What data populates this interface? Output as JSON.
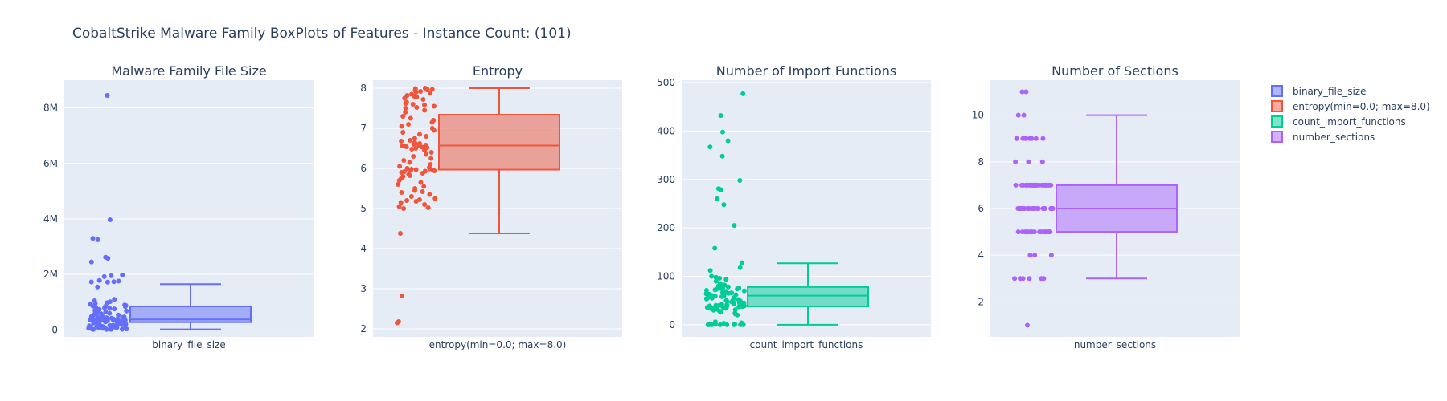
{
  "title": "CobaltStrike Malware Family BoxPlots of Features - Instance Count: (101)",
  "colors": {
    "plot_bg": "#e5ecf6",
    "grid": "#ffffff",
    "text": "#2a3f5f"
  },
  "legend": {
    "placement": "right",
    "items": [
      {
        "label": "binary_file_size",
        "color": "#636efa"
      },
      {
        "label": "entropy(min=0.0; max=8.0)",
        "color": "#ef553b"
      },
      {
        "label": "count_import_functions",
        "color": "#00cc96"
      },
      {
        "label": "number_sections",
        "color": "#ab63fa"
      }
    ]
  },
  "chart_data": [
    {
      "type": "box",
      "title": "Malware Family File Size",
      "category": "binary_file_size",
      "color": "#636efa",
      "ylim": [
        -250000,
        9000000
      ],
      "yticks": [
        0,
        2000000,
        4000000,
        6000000,
        8000000
      ],
      "yticklabels": [
        "0",
        "2M",
        "4M",
        "6M",
        "8M"
      ],
      "box": {
        "min": 20000,
        "q1": 280000,
        "median": 380000,
        "q3": 850000,
        "max": 1650000
      },
      "points": [
        8450000,
        3970000,
        3300000,
        3250000,
        2620000,
        2580000,
        2450000,
        1980000,
        1950000,
        1920000,
        1780000,
        1760000,
        1740000,
        1730000,
        1720000,
        1550000,
        1100000,
        1050000,
        1020000,
        980000,
        950000,
        920000,
        900000,
        880000,
        860000,
        850000,
        840000,
        820000,
        800000,
        780000,
        760000,
        740000,
        700000,
        680000,
        650000,
        620000,
        600000,
        580000,
        560000,
        540000,
        520000,
        500000,
        480000,
        470000,
        460000,
        450000,
        440000,
        430000,
        420000,
        410000,
        400000,
        390000,
        385000,
        380000,
        375000,
        370000,
        365000,
        360000,
        355000,
        350000,
        345000,
        340000,
        335000,
        330000,
        320000,
        310000,
        300000,
        290000,
        280000,
        270000,
        260000,
        250000,
        240000,
        230000,
        220000,
        210000,
        200000,
        190000,
        180000,
        170000,
        160000,
        150000,
        140000,
        130000,
        120000,
        110000,
        100000,
        90000,
        80000,
        70000,
        60000,
        55000,
        50000,
        45000,
        40000,
        35000,
        30000,
        25000,
        22000,
        20000,
        18000
      ]
    },
    {
      "type": "box",
      "title": "Entropy",
      "category": "entropy(min=0.0; max=8.0)",
      "color": "#ef553b",
      "ylim": [
        1.8,
        8.2
      ],
      "yticks": [
        2,
        3,
        4,
        5,
        6,
        7,
        8
      ],
      "yticklabels": [
        "2",
        "3",
        "4",
        "5",
        "6",
        "7",
        "8"
      ],
      "box": {
        "min": 4.38,
        "q1": 5.97,
        "median": 6.57,
        "q3": 7.34,
        "max": 8.0
      },
      "points": [
        8.0,
        7.99,
        7.98,
        7.97,
        7.96,
        7.95,
        7.93,
        7.92,
        7.9,
        7.88,
        7.85,
        7.82,
        7.8,
        7.78,
        7.75,
        7.72,
        7.6,
        7.58,
        7.55,
        7.52,
        7.5,
        7.45,
        7.4,
        7.3,
        7.25,
        7.2,
        7.15,
        7.1,
        7.05,
        7.0,
        6.95,
        6.9,
        6.85,
        6.8,
        6.75,
        6.7,
        6.68,
        6.65,
        6.62,
        6.6,
        6.58,
        6.57,
        6.56,
        6.55,
        6.54,
        6.53,
        6.52,
        6.5,
        6.48,
        6.45,
        6.4,
        6.35,
        6.3,
        6.25,
        6.2,
        6.15,
        6.1,
        6.05,
        6.02,
        6.0,
        5.99,
        5.98,
        5.97,
        5.96,
        5.95,
        5.94,
        5.93,
        5.92,
        5.9,
        5.88,
        5.85,
        5.82,
        5.8,
        5.75,
        5.7,
        5.65,
        5.6,
        5.55,
        5.5,
        5.45,
        5.42,
        5.4,
        5.35,
        5.3,
        5.25,
        5.22,
        5.2,
        5.18,
        5.15,
        5.1,
        5.05,
        5.02,
        5.0,
        4.38,
        2.82,
        2.18,
        2.15,
        6.62,
        6.58,
        7.62,
        7.65
      ]
    },
    {
      "type": "box",
      "title": "Number of Import Functions",
      "category": "count_import_functions",
      "color": "#00cc96",
      "ylim": [
        -25,
        505
      ],
      "yticks": [
        0,
        100,
        200,
        300,
        400,
        500
      ],
      "yticklabels": [
        "0",
        "100",
        "200",
        "300",
        "400",
        "500"
      ],
      "box": {
        "min": 0,
        "q1": 38,
        "median": 60,
        "q3": 78,
        "max": 127
      },
      "points": [
        477,
        432,
        398,
        380,
        367,
        348,
        298,
        281,
        279,
        260,
        248,
        205,
        158,
        128,
        118,
        112,
        100,
        98,
        96,
        94,
        90,
        85,
        82,
        80,
        78,
        77,
        76,
        75,
        74,
        73,
        72,
        71,
        70,
        69,
        68,
        67,
        66,
        65,
        64,
        63,
        62,
        61,
        60,
        60,
        59,
        58,
        57,
        56,
        55,
        54,
        53,
        52,
        51,
        50,
        49,
        48,
        47,
        46,
        45,
        44,
        43,
        42,
        41,
        40,
        40,
        39,
        39,
        38,
        38,
        38,
        37,
        37,
        36,
        36,
        35,
        35,
        34,
        34,
        33,
        32,
        31,
        30,
        28,
        26,
        24,
        22,
        20,
        6,
        4,
        3,
        2,
        1,
        1,
        0,
        0,
        0,
        0,
        0,
        0,
        0,
        0
      ]
    },
    {
      "type": "box",
      "title": "Number of Sections",
      "category": "number_sections",
      "color": "#ab63fa",
      "ylim": [
        0.5,
        11.5
      ],
      "yticks": [
        2,
        4,
        6,
        8,
        10
      ],
      "yticklabels": [
        "2",
        "4",
        "6",
        "8",
        "10"
      ],
      "box": {
        "min": 3,
        "q1": 5,
        "median": 6,
        "q3": 7,
        "max": 10
      },
      "points": [
        11,
        11,
        10,
        10,
        9,
        9,
        9,
        9,
        9,
        9,
        9,
        9,
        8,
        8,
        7,
        7,
        7,
        7,
        7,
        7,
        7,
        7,
        7,
        7,
        7,
        7,
        7,
        7,
        7,
        7,
        7,
        7,
        7,
        7,
        7,
        7,
        7,
        7,
        7,
        6,
        6,
        6,
        6,
        6,
        6,
        6,
        6,
        6,
        6,
        6,
        6,
        6,
        6,
        6,
        6,
        6,
        6,
        6,
        6,
        6,
        6,
        6,
        6,
        6,
        6,
        6,
        5,
        5,
        5,
        5,
        5,
        5,
        5,
        5,
        5,
        5,
        5,
        5,
        5,
        5,
        5,
        5,
        5,
        4,
        4,
        4,
        3,
        3,
        3,
        3,
        3,
        3,
        1,
        7,
        7,
        6,
        6,
        5,
        9,
        8
      ]
    }
  ]
}
